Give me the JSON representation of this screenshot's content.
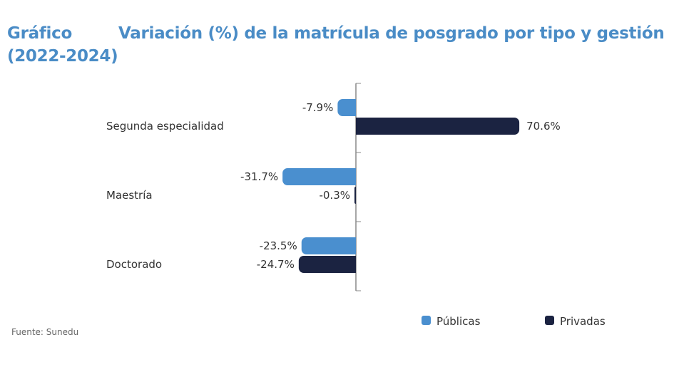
{
  "header": {
    "label": "Gráfico",
    "years": "(2022-2024)"
  },
  "source": "Fuente: Sunedu",
  "chart_data": {
    "type": "bar",
    "orientation": "horizontal",
    "title": "Variación (%) de la matrícula de posgrado por tipo y gestión",
    "categories": [
      "Segunda especialidad",
      "Maestría",
      "Doctorado"
    ],
    "series": [
      {
        "name": "Públicas",
        "values": [
          -7.9,
          -31.7,
          -23.5
        ],
        "labels": [
          "-7.9%",
          "-31.7%",
          "-23.5%"
        ],
        "color": "#4a8fcf"
      },
      {
        "name": "Privadas",
        "values": [
          70.6,
          -0.3,
          -24.7
        ],
        "labels": [
          "70.6%",
          "-0.3%",
          "-24.7%"
        ],
        "color": "#1b2341"
      }
    ],
    "legend": "bottom-right",
    "grid": false
  }
}
